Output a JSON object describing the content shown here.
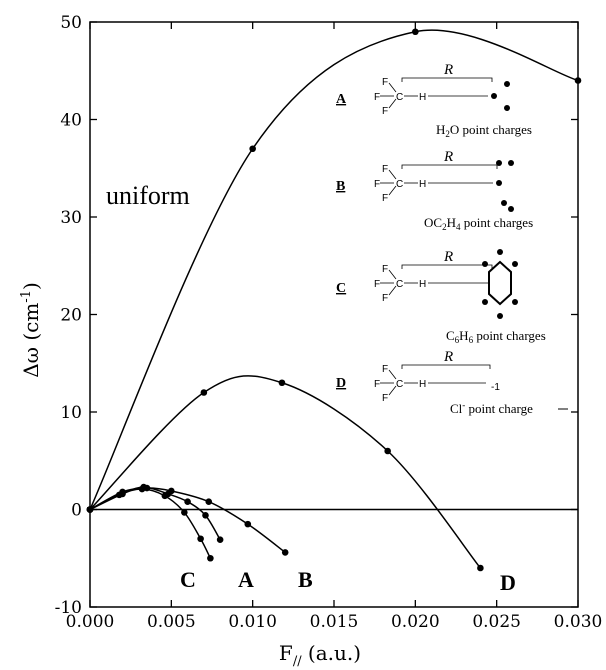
{
  "chart_data": {
    "type": "line",
    "xlabel": "F// (a.u.)",
    "xlabel_main": "F",
    "xlabel_sub": "//",
    "xlabel_unit": " (a.u.)",
    "ylabel_main": "Δω (cm",
    "ylabel_sup": "-1",
    "ylabel_close": ")",
    "xlim": [
      0,
      0.03
    ],
    "ylim": [
      -10,
      50
    ],
    "xticks": [
      "0.000",
      "0.005",
      "0.010",
      "0.015",
      "0.020",
      "0.025",
      "0.030"
    ],
    "yticks": [
      "-10",
      "0",
      "10",
      "20",
      "30",
      "40",
      "50"
    ],
    "series": [
      {
        "name": "uniform",
        "x": [
          0,
          0.01,
          0.02,
          0.03
        ],
        "y": [
          0,
          37,
          49,
          44
        ]
      },
      {
        "name": "D",
        "x": [
          0,
          0.007,
          0.0118,
          0.0183,
          0.024
        ],
        "y": [
          0,
          12,
          13,
          6,
          -6
        ]
      },
      {
        "name": "B",
        "x": [
          0,
          0.002,
          0.0035,
          0.005,
          0.0073,
          0.0097,
          0.012
        ],
        "y": [
          0,
          1.8,
          2.2,
          1.9,
          0.8,
          -1.5,
          -4.4
        ]
      },
      {
        "name": "A",
        "x": [
          0,
          0.002,
          0.0033,
          0.0048,
          0.006,
          0.0071,
          0.008
        ],
        "y": [
          0,
          1.6,
          2.3,
          1.6,
          0.8,
          -0.6,
          -3.1
        ]
      },
      {
        "name": "C",
        "x": [
          0,
          0.0018,
          0.0032,
          0.0046,
          0.0058,
          0.0068,
          0.0074
        ],
        "y": [
          0,
          1.5,
          2.1,
          1.4,
          -0.3,
          -3.0,
          -5.0
        ]
      }
    ],
    "annotations": {
      "uniform": "uniform",
      "C": "C",
      "A": "A",
      "B": "B",
      "D": "D"
    },
    "legend": [
      {
        "key": "A",
        "caption_pre": "H",
        "caption_sub": "2",
        "caption_post": "O point charges"
      },
      {
        "key": "B",
        "caption_pre": "OC",
        "caption_sub": "2",
        "caption_mid": "H",
        "caption_sub2": "4",
        "caption_post": " point charges"
      },
      {
        "key": "C",
        "caption_pre": "C",
        "caption_sub": "6",
        "caption_mid": "H",
        "caption_sub2": "6",
        "caption_post": " point charges"
      },
      {
        "key": "D",
        "caption_pre": "Cl",
        "caption_sup": "-",
        "caption_post": " point charge"
      }
    ],
    "molecule": {
      "f": "F",
      "c": "C",
      "h": "H",
      "r": "R",
      "minus_one": "-1"
    }
  }
}
